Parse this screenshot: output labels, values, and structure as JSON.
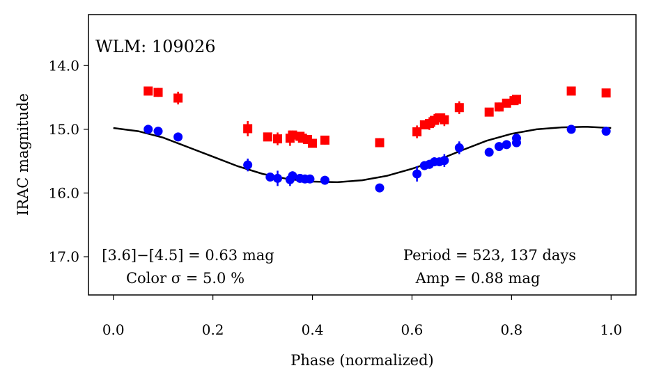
{
  "chart_data": {
    "type": "scatter",
    "title": "WLM: 109026",
    "xlabel": "Phase (normalized)",
    "ylabel": "IRAC magnitude",
    "xlim": [
      -0.05,
      1.05
    ],
    "ylim": [
      17.6,
      13.2
    ],
    "y_inverted": true,
    "grid": false,
    "x_ticks": [
      0.0,
      0.2,
      0.4,
      0.6,
      0.8,
      1.0
    ],
    "x_tick_labels": [
      "0.0",
      "0.2",
      "0.4",
      "0.6",
      "0.8",
      "1.0"
    ],
    "y_ticks": [
      14.0,
      15.0,
      16.0,
      17.0
    ],
    "y_tick_labels": [
      "14.0",
      "15.0",
      "16.0",
      "17.0"
    ],
    "annotations": {
      "color_line1": "[3.6]−[4.5] = 0.63 mag",
      "color_line2": "Color σ = 5.0 %",
      "period_line1": "Period = 523, 137 days",
      "period_line2": "Amp = 0.88 mag"
    },
    "series": [
      {
        "marker": "square",
        "color": "#ff0000",
        "points": [
          {
            "x": 0.07,
            "y": 14.4,
            "err": 0.05
          },
          {
            "x": 0.09,
            "y": 14.42,
            "err": 0.07
          },
          {
            "x": 0.13,
            "y": 14.51,
            "err": 0.1
          },
          {
            "x": 0.27,
            "y": 14.99,
            "err": 0.12
          },
          {
            "x": 0.31,
            "y": 15.12,
            "err": 0.05
          },
          {
            "x": 0.33,
            "y": 15.15,
            "err": 0.1
          },
          {
            "x": 0.355,
            "y": 15.14,
            "err": 0.12
          },
          {
            "x": 0.36,
            "y": 15.09,
            "err": 0.07
          },
          {
            "x": 0.375,
            "y": 15.11,
            "err": 0.06
          },
          {
            "x": 0.38,
            "y": 15.14,
            "err": 0.06
          },
          {
            "x": 0.39,
            "y": 15.16,
            "err": 0.05
          },
          {
            "x": 0.4,
            "y": 15.22,
            "err": 0.07
          },
          {
            "x": 0.425,
            "y": 15.17,
            "err": 0.07
          },
          {
            "x": 0.535,
            "y": 15.21,
            "err": 0.07
          },
          {
            "x": 0.61,
            "y": 15.04,
            "err": 0.1
          },
          {
            "x": 0.625,
            "y": 14.93,
            "err": 0.07
          },
          {
            "x": 0.635,
            "y": 14.91,
            "err": 0.1
          },
          {
            "x": 0.645,
            "y": 14.86,
            "err": 0.1
          },
          {
            "x": 0.655,
            "y": 14.82,
            "err": 0.07
          },
          {
            "x": 0.665,
            "y": 14.85,
            "err": 0.1
          },
          {
            "x": 0.695,
            "y": 14.66,
            "err": 0.1
          },
          {
            "x": 0.755,
            "y": 14.73,
            "err": 0.05
          },
          {
            "x": 0.775,
            "y": 14.65,
            "err": 0.07
          },
          {
            "x": 0.79,
            "y": 14.59,
            "err": 0.05
          },
          {
            "x": 0.805,
            "y": 14.55,
            "err": 0.07
          },
          {
            "x": 0.81,
            "y": 14.53,
            "err": 0.07
          },
          {
            "x": 0.92,
            "y": 14.4,
            "err": 0.04
          },
          {
            "x": 0.99,
            "y": 14.43,
            "err": 0.04
          }
        ]
      },
      {
        "marker": "circle",
        "color": "#0000ff",
        "points": [
          {
            "x": 0.07,
            "y": 15.0,
            "err": 0.05
          },
          {
            "x": 0.09,
            "y": 15.03,
            "err": 0.05
          },
          {
            "x": 0.13,
            "y": 15.12,
            "err": 0.05
          },
          {
            "x": 0.27,
            "y": 15.56,
            "err": 0.1
          },
          {
            "x": 0.315,
            "y": 15.75,
            "err": 0.05
          },
          {
            "x": 0.33,
            "y": 15.77,
            "err": 0.12
          },
          {
            "x": 0.355,
            "y": 15.79,
            "err": 0.1
          },
          {
            "x": 0.36,
            "y": 15.73,
            "err": 0.07
          },
          {
            "x": 0.375,
            "y": 15.77,
            "err": 0.05
          },
          {
            "x": 0.385,
            "y": 15.78,
            "err": 0.05
          },
          {
            "x": 0.395,
            "y": 15.78,
            "err": 0.05
          },
          {
            "x": 0.425,
            "y": 15.8,
            "err": 0.05
          },
          {
            "x": 0.535,
            "y": 15.92,
            "err": 0.05
          },
          {
            "x": 0.61,
            "y": 15.7,
            "err": 0.12
          },
          {
            "x": 0.625,
            "y": 15.57,
            "err": 0.07
          },
          {
            "x": 0.635,
            "y": 15.55,
            "err": 0.07
          },
          {
            "x": 0.645,
            "y": 15.51,
            "err": 0.07
          },
          {
            "x": 0.655,
            "y": 15.51,
            "err": 0.05
          },
          {
            "x": 0.665,
            "y": 15.49,
            "err": 0.1
          },
          {
            "x": 0.695,
            "y": 15.29,
            "err": 0.1
          },
          {
            "x": 0.755,
            "y": 15.36,
            "err": 0.05
          },
          {
            "x": 0.775,
            "y": 15.27,
            "err": 0.05
          },
          {
            "x": 0.79,
            "y": 15.24,
            "err": 0.05
          },
          {
            "x": 0.81,
            "y": 15.21,
            "err": 0.05
          },
          {
            "x": 0.81,
            "y": 15.14,
            "err": 0.05
          },
          {
            "x": 0.92,
            "y": 15.0,
            "err": 0.04
          },
          {
            "x": 0.99,
            "y": 15.03,
            "err": 0.04
          }
        ]
      }
    ],
    "model_curve": {
      "color": "#000000",
      "points": [
        [
          0.0,
          14.98
        ],
        [
          0.05,
          15.03
        ],
        [
          0.1,
          15.13
        ],
        [
          0.15,
          15.28
        ],
        [
          0.2,
          15.43
        ],
        [
          0.25,
          15.58
        ],
        [
          0.3,
          15.7
        ],
        [
          0.35,
          15.78
        ],
        [
          0.4,
          15.82
        ],
        [
          0.45,
          15.83
        ],
        [
          0.5,
          15.8
        ],
        [
          0.55,
          15.73
        ],
        [
          0.6,
          15.62
        ],
        [
          0.65,
          15.49
        ],
        [
          0.7,
          15.33
        ],
        [
          0.75,
          15.18
        ],
        [
          0.8,
          15.07
        ],
        [
          0.85,
          15.0
        ],
        [
          0.9,
          14.97
        ],
        [
          0.95,
          14.96
        ],
        [
          1.0,
          14.98
        ]
      ]
    }
  }
}
